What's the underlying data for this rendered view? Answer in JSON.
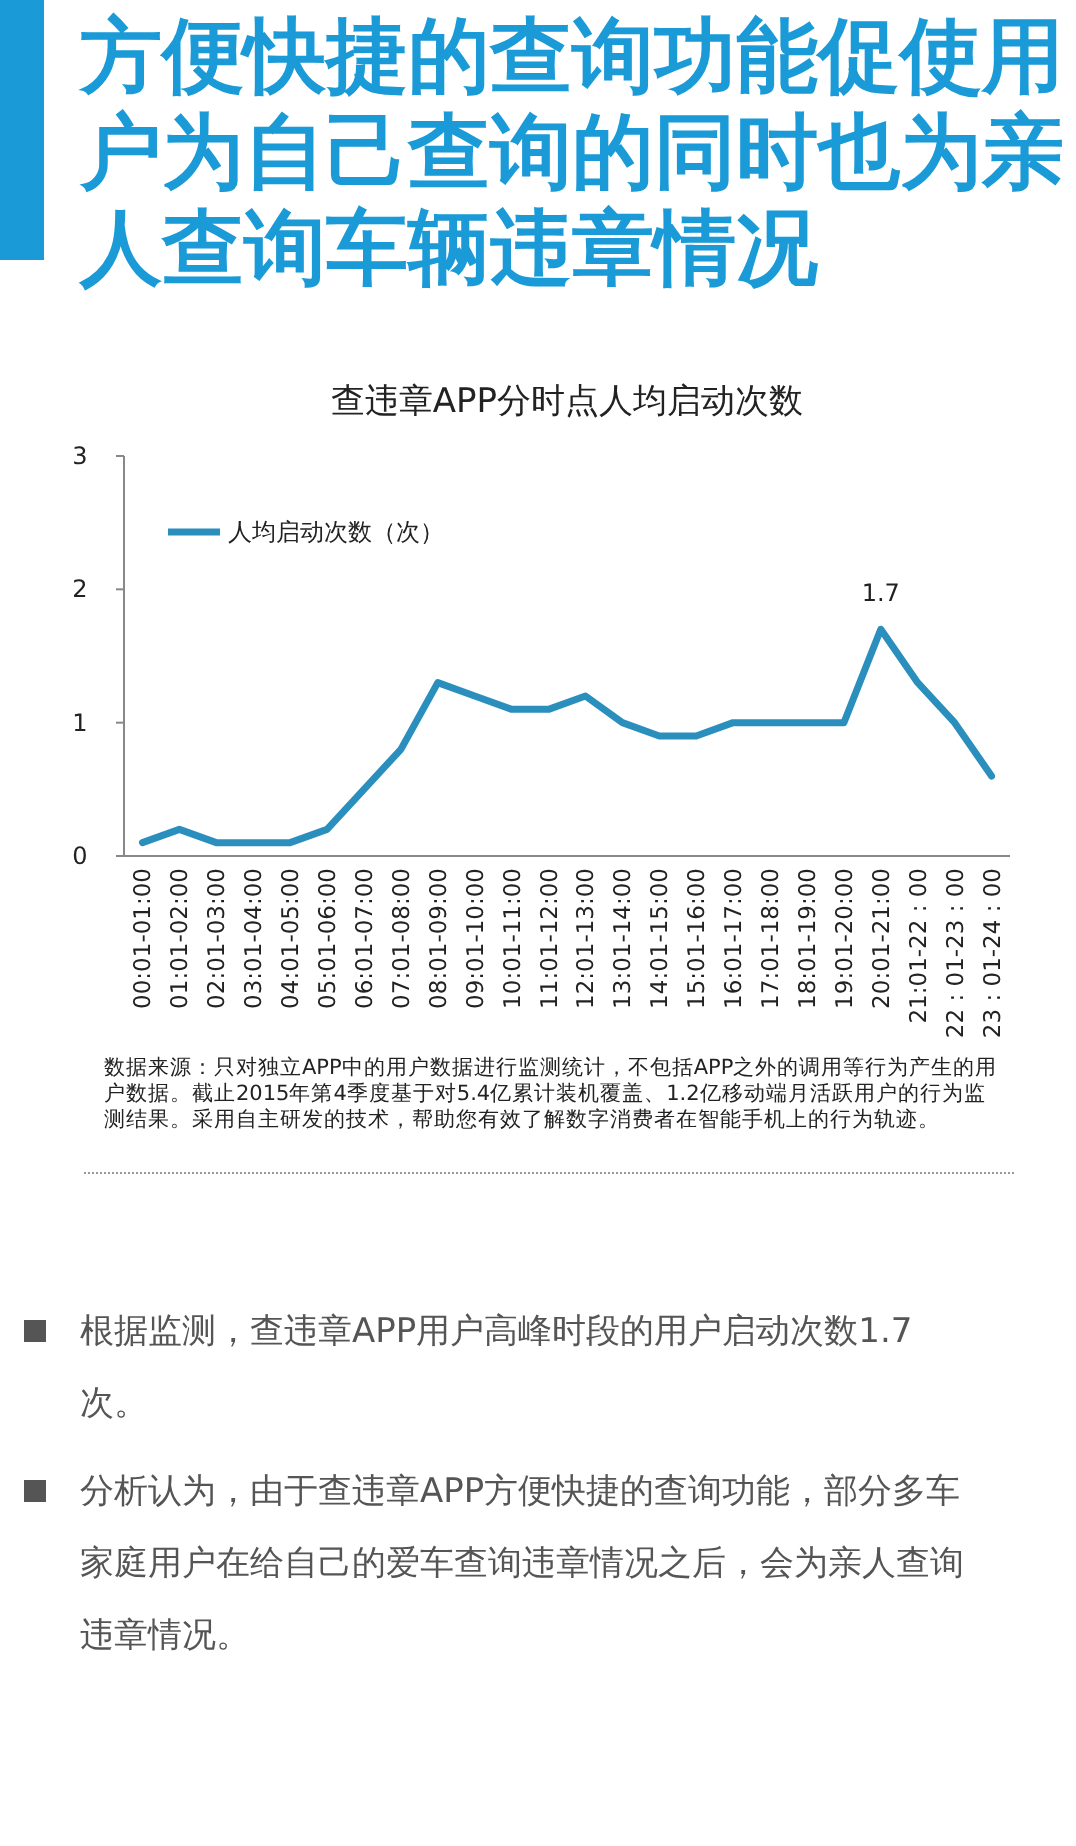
{
  "chart_data": {
    "type": "line",
    "title": "方便快捷的查询功能促使用户为自己查询的同时也为亲人查询车辆违章情况",
    "subtitle": "查违章APP分时点人均启动次数",
    "categories": [
      "00:01-01:00",
      "01:01-02:00",
      "02:01-03:00",
      "03:01-04:00",
      "04:01-05:00",
      "05:01-06:00",
      "06:01-07:00",
      "07:01-08:00",
      "08:01-09:00",
      "09:01-10:00",
      "10:01-11:00",
      "11:01-12:00",
      "12:01-13:00",
      "13:01-14:00",
      "14:01-15:00",
      "15:01-16:00",
      "16:01-17:00",
      "17:01-18:00",
      "18:01-19:00",
      "19:01-20:00",
      "20:01-21:00",
      "21:01-22 : 00",
      "22 : 01-23 : 00",
      "23 : 01-24 : 00"
    ],
    "series": [
      {
        "name": "人均启动次数（次）",
        "color": "#2a8fbd",
        "values": [
          0.1,
          0.2,
          0.1,
          0.1,
          0.1,
          0.2,
          0.5,
          0.8,
          1.3,
          1.2,
          1.1,
          1.1,
          1.2,
          1.0,
          0.9,
          0.9,
          1.0,
          1.0,
          1.0,
          1.0,
          1.7,
          1.3,
          1.0,
          0.6
        ],
        "value_labels": [
          null,
          null,
          null,
          null,
          null,
          null,
          null,
          null,
          null,
          null,
          null,
          null,
          null,
          null,
          null,
          null,
          null,
          null,
          null,
          null,
          "1.7",
          null,
          null,
          null
        ]
      }
    ],
    "ylim": [
      0,
      3
    ],
    "yticks": [
      0,
      1,
      2,
      3
    ],
    "grid": false,
    "legend": "top left",
    "marker": "none",
    "line_style": "solid",
    "annotations": [
      "数据来源：只对独立APP中的用户数据进行监测统计，不包括APP之外的调用等行为产生的用户数据。截止2015年第4季度基于对5.4亿累计装机覆盖、1.2亿移动端月活跃用户的行为监测结果。采用自主研发的技术，帮助您有效了解数字消费者在智能手机上的行为轨迹。",
      "根据监测，查违章APP用户高峰时段的用户启动次数1.7次。",
      "分析认为，由于查违章APP方便快捷的查询功能，部分多车家庭用户在给自己的爱车查询违章情况之后，会为亲人查询违章情况。"
    ]
  }
}
